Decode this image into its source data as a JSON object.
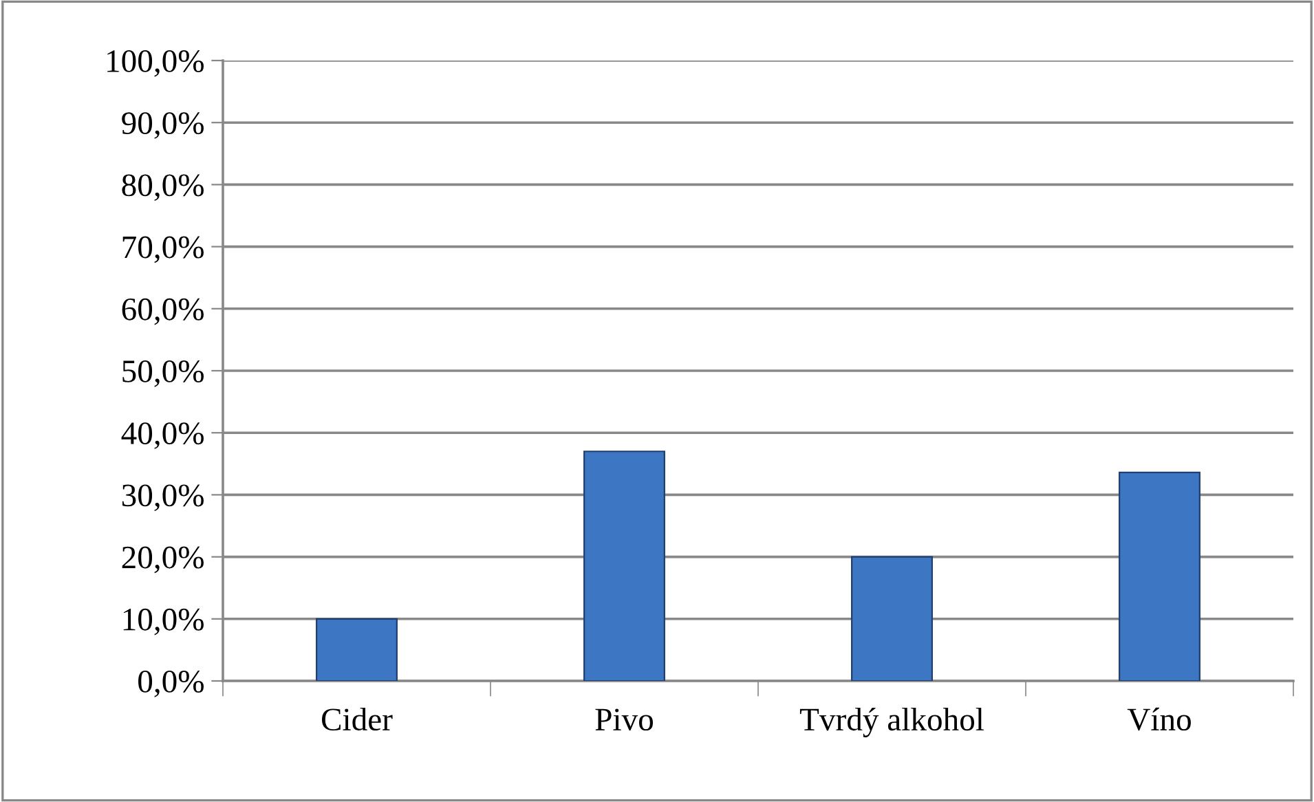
{
  "chart_data": {
    "type": "bar",
    "categories": [
      "Cider",
      "Pivo",
      "Tvrdý alkohol",
      "Víno"
    ],
    "values": [
      10.0,
      37.0,
      20.0,
      33.6
    ],
    "color": "#3d77c4",
    "ylim": [
      0,
      100
    ],
    "yticks": [
      {
        "value": 0,
        "label": "0,0%"
      },
      {
        "value": 10,
        "label": "10,0%"
      },
      {
        "value": 20,
        "label": "20,0%"
      },
      {
        "value": 30,
        "label": "30,0%"
      },
      {
        "value": 40,
        "label": "40,0%"
      },
      {
        "value": 50,
        "label": "50,0%"
      },
      {
        "value": 60,
        "label": "60,0%"
      },
      {
        "value": 70,
        "label": "70,0%"
      },
      {
        "value": 80,
        "label": "80,0%"
      },
      {
        "value": 90,
        "label": "90,0%"
      },
      {
        "value": 100,
        "label": "100,0%"
      }
    ],
    "grid": "y"
  }
}
